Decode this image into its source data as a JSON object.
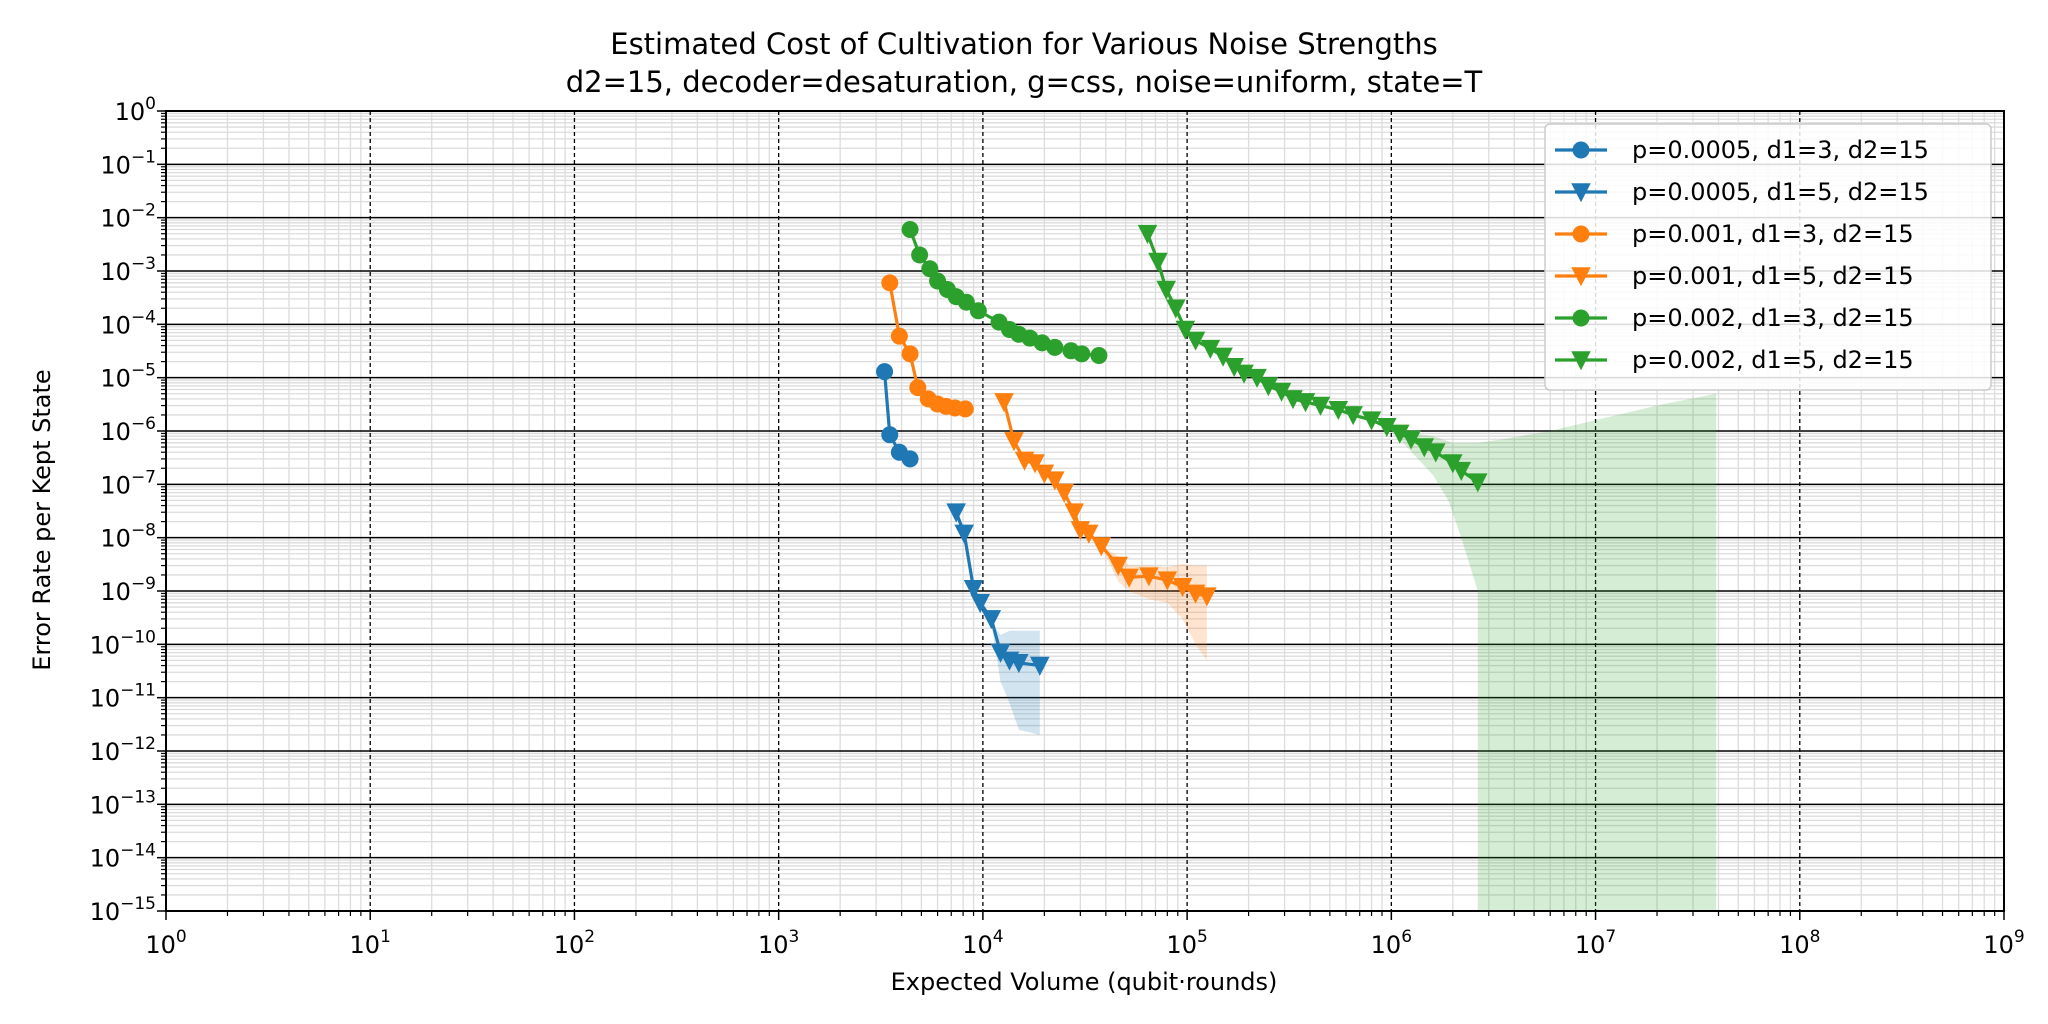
{
  "chart_data": {
    "type": "line",
    "title": "Estimated Cost of Cultivation for Various Noise Strengths",
    "subtitle": "d2=15, decoder=desaturation, g=css, noise=uniform, state=T",
    "xlabel": "Expected Volume (qubit·rounds)",
    "ylabel": "Error Rate per Kept State",
    "xscale": "log",
    "yscale": "log",
    "xlim": [
      1,
      1000000000
    ],
    "ylim": [
      1e-15,
      1
    ],
    "x_ticks": [
      {
        "base": "10",
        "exp": "0"
      },
      {
        "base": "10",
        "exp": "1"
      },
      {
        "base": "10",
        "exp": "2"
      },
      {
        "base": "10",
        "exp": "3"
      },
      {
        "base": "10",
        "exp": "4"
      },
      {
        "base": "10",
        "exp": "5"
      },
      {
        "base": "10",
        "exp": "6"
      },
      {
        "base": "10",
        "exp": "7"
      },
      {
        "base": "10",
        "exp": "8"
      },
      {
        "base": "10",
        "exp": "9"
      }
    ],
    "y_ticks": [
      {
        "base": "10",
        "exp": "0"
      },
      {
        "base": "10",
        "exp": "−1"
      },
      {
        "base": "10",
        "exp": "−2"
      },
      {
        "base": "10",
        "exp": "−3"
      },
      {
        "base": "10",
        "exp": "−4"
      },
      {
        "base": "10",
        "exp": "−5"
      },
      {
        "base": "10",
        "exp": "−6"
      },
      {
        "base": "10",
        "exp": "−7"
      },
      {
        "base": "10",
        "exp": "−8"
      },
      {
        "base": "10",
        "exp": "−9"
      },
      {
        "base": "10",
        "exp": "−10"
      },
      {
        "base": "10",
        "exp": "−11"
      },
      {
        "base": "10",
        "exp": "−12"
      },
      {
        "base": "10",
        "exp": "−13"
      },
      {
        "base": "10",
        "exp": "−14"
      },
      {
        "base": "10",
        "exp": "−15"
      }
    ],
    "grid": true,
    "legend_position": "top-right",
    "series": [
      {
        "name": "p=0.0005, d1=3, d2=15",
        "color": "#1f77b4",
        "marker": "circle",
        "points": [
          [
            3300,
            1.3e-05
          ],
          [
            3500,
            8.5e-07
          ],
          [
            3900,
            4e-07
          ],
          [
            4400,
            3e-07
          ]
        ]
      },
      {
        "name": "p=0.0005, d1=5, d2=15",
        "color": "#1f77b4",
        "marker": "triangle-down",
        "points": [
          [
            7400,
            3e-08
          ],
          [
            8100,
            1.2e-08
          ],
          [
            9000,
            1.1e-09
          ],
          [
            9700,
            6e-10
          ],
          [
            11000,
            3e-10
          ],
          [
            12200,
            7e-11
          ],
          [
            13500,
            5e-11
          ],
          [
            15000,
            4.5e-11
          ],
          [
            19000,
            4e-11
          ]
        ],
        "band_upper": [
          [
            11000,
            2.5e-10
          ],
          [
            12200,
            1.5e-10
          ],
          [
            13500,
            1.8e-10
          ],
          [
            15000,
            1.8e-10
          ],
          [
            19000,
            1.8e-10
          ]
        ],
        "band_lower": [
          [
            11000,
            2.5e-10
          ],
          [
            12200,
            2e-11
          ],
          [
            13500,
            8e-12
          ],
          [
            15000,
            2.5e-12
          ],
          [
            19000,
            2e-12
          ]
        ]
      },
      {
        "name": "p=0.001, d1=3, d2=15",
        "color": "#ff7f0e",
        "marker": "circle",
        "points": [
          [
            3500,
            0.0006
          ],
          [
            3900,
            6e-05
          ],
          [
            4400,
            2.8e-05
          ],
          [
            4800,
            6.5e-06
          ],
          [
            5400,
            4e-06
          ],
          [
            6000,
            3.2e-06
          ],
          [
            6600,
            2.9e-06
          ],
          [
            7300,
            2.7e-06
          ],
          [
            8200,
            2.6e-06
          ]
        ]
      },
      {
        "name": "p=0.001, d1=5, d2=15",
        "color": "#ff7f0e",
        "marker": "triangle-down",
        "points": [
          [
            12700,
            3.5e-06
          ],
          [
            14200,
            6.5e-07
          ],
          [
            16000,
            2.8e-07
          ],
          [
            18000,
            2.5e-07
          ],
          [
            20000,
            1.6e-07
          ],
          [
            22500,
            1.2e-07
          ],
          [
            25000,
            7e-08
          ],
          [
            28000,
            3e-08
          ],
          [
            30000,
            1.4e-08
          ],
          [
            33000,
            1.2e-08
          ],
          [
            38000,
            7e-09
          ],
          [
            46000,
            3e-09
          ],
          [
            52000,
            1.8e-09
          ],
          [
            65000,
            1.9e-09
          ],
          [
            80000,
            1.6e-09
          ],
          [
            95000,
            1.2e-09
          ],
          [
            110000,
            9e-10
          ],
          [
            125000,
            8e-10
          ]
        ],
        "band_upper": [
          [
            38000,
            7e-09
          ],
          [
            46000,
            4.5e-09
          ],
          [
            52000,
            3e-09
          ],
          [
            65000,
            3e-09
          ],
          [
            80000,
            2.8e-09
          ],
          [
            95000,
            3.2e-09
          ],
          [
            110000,
            3e-09
          ],
          [
            125000,
            3e-09
          ]
        ],
        "band_lower": [
          [
            38000,
            7e-09
          ],
          [
            46000,
            1.5e-09
          ],
          [
            52000,
            1e-09
          ],
          [
            65000,
            7e-10
          ],
          [
            80000,
            6e-10
          ],
          [
            95000,
            3e-10
          ],
          [
            110000,
            1e-10
          ],
          [
            125000,
            5e-11
          ]
        ]
      },
      {
        "name": "p=0.002, d1=3, d2=15",
        "color": "#2ca02c",
        "marker": "circle",
        "points": [
          [
            4400,
            0.006
          ],
          [
            4900,
            0.002
          ],
          [
            5500,
            0.0011
          ],
          [
            6000,
            0.00065
          ],
          [
            6700,
            0.00045
          ],
          [
            7400,
            0.00033
          ],
          [
            8300,
            0.00026
          ],
          [
            9500,
            0.00018
          ],
          [
            12000,
            0.00011
          ],
          [
            13500,
            8e-05
          ],
          [
            15000,
            6.5e-05
          ],
          [
            17000,
            5.5e-05
          ],
          [
            19500,
            4.5e-05
          ],
          [
            22500,
            3.7e-05
          ],
          [
            27000,
            3.2e-05
          ],
          [
            30500,
            2.8e-05
          ],
          [
            37000,
            2.6e-05
          ]
        ]
      },
      {
        "name": "p=0.002, d1=5, d2=15",
        "color": "#2ca02c",
        "marker": "triangle-down",
        "points": [
          [
            64000,
            0.005
          ],
          [
            72000,
            0.0015
          ],
          [
            79000,
            0.00045
          ],
          [
            88000,
            0.0002
          ],
          [
            98000,
            8e-05
          ],
          [
            110000,
            5e-05
          ],
          [
            130000,
            3.5e-05
          ],
          [
            150000,
            2.5e-05
          ],
          [
            170000,
            1.6e-05
          ],
          [
            190000,
            1.2e-05
          ],
          [
            220000,
            1e-05
          ],
          [
            250000,
            7e-06
          ],
          [
            290000,
            5.5e-06
          ],
          [
            330000,
            4e-06
          ],
          [
            380000,
            3.5e-06
          ],
          [
            450000,
            3e-06
          ],
          [
            550000,
            2.5e-06
          ],
          [
            650000,
            2e-06
          ],
          [
            800000,
            1.6e-06
          ],
          [
            950000,
            1.2e-06
          ],
          [
            1100000,
            9e-07
          ],
          [
            1250000,
            7e-07
          ],
          [
            1450000,
            5e-07
          ],
          [
            1650000,
            4e-07
          ],
          [
            2000000,
            2.5e-07
          ],
          [
            2200000,
            1.8e-07
          ],
          [
            2650000,
            1.1e-07
          ]
        ],
        "band_upper": [
          [
            650000,
            2e-06
          ],
          [
            800000,
            1.7e-06
          ],
          [
            950000,
            1.4e-06
          ],
          [
            1100000,
            1.1e-06
          ],
          [
            1300000,
            9e-07
          ],
          [
            1600000,
            8e-07
          ],
          [
            2000000,
            6e-07
          ],
          [
            2650000,
            6e-07
          ],
          [
            3500000,
            7e-07
          ],
          [
            6000000,
            1e-06
          ],
          [
            10000000,
            1.6e-06
          ],
          [
            20000000,
            3e-06
          ],
          [
            39000000,
            5e-06
          ]
        ],
        "band_lower": [
          [
            650000,
            2e-06
          ],
          [
            800000,
            1.5e-06
          ],
          [
            950000,
            1.1e-06
          ],
          [
            1100000,
            7e-07
          ],
          [
            1300000,
            3.5e-07
          ],
          [
            1600000,
            1.5e-07
          ],
          [
            1900000,
            5e-08
          ],
          [
            2200000,
            1e-08
          ],
          [
            2650000,
            1e-09
          ],
          [
            2650000,
            1e-15
          ],
          [
            39000000,
            1e-15
          ]
        ]
      }
    ]
  }
}
